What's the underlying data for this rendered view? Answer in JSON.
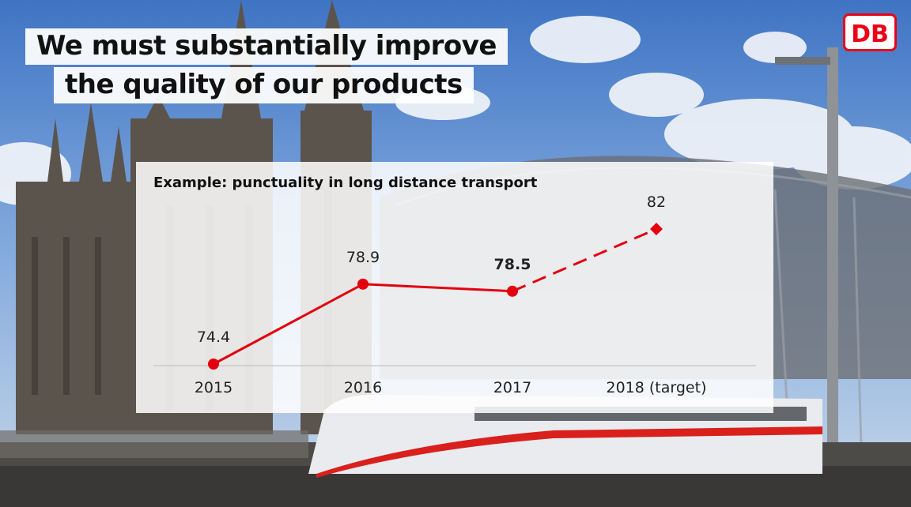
{
  "slide": {
    "headline_line1": "We must substantially improve",
    "headline_line2": "the quality of our products",
    "logo_text": "DB",
    "brand_color": "#EC0016"
  },
  "chart_data": {
    "type": "line",
    "title": "Example: punctuality in long distance transport",
    "categories": [
      "2015",
      "2016",
      "2017",
      "2018 (target)"
    ],
    "values": [
      74.4,
      78.9,
      78.5,
      82
    ],
    "value_labels": [
      "74.4",
      "78.9",
      "78.5",
      "82"
    ],
    "bold_label_index": 2,
    "target_index": 3,
    "ylim": [
      72,
      84
    ],
    "xlabel": "",
    "ylabel": "",
    "grid": false,
    "color": "#E3000F"
  }
}
